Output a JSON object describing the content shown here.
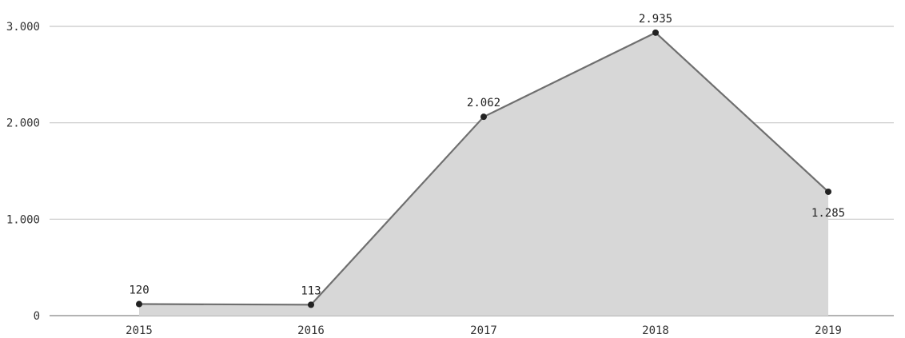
{
  "chart_data": {
    "type": "area",
    "title": "",
    "xlabel": "",
    "ylabel": "",
    "categories": [
      "2015",
      "2016",
      "2017",
      "2018",
      "2019"
    ],
    "values": [
      120,
      113,
      2062,
      2935,
      1285
    ],
    "value_labels": [
      "120",
      "113",
      "2.062",
      "2.935",
      "1.285"
    ],
    "ylim": [
      0,
      3000
    ],
    "yticks": [
      0,
      1000,
      2000,
      3000
    ],
    "ytick_labels": [
      "0",
      "1.000",
      "2.000",
      "3.000"
    ],
    "grid": true,
    "legend": "none",
    "colors": {
      "area": "#d7d7d7",
      "line": "#6f6f6f",
      "marker": "#222222"
    }
  }
}
